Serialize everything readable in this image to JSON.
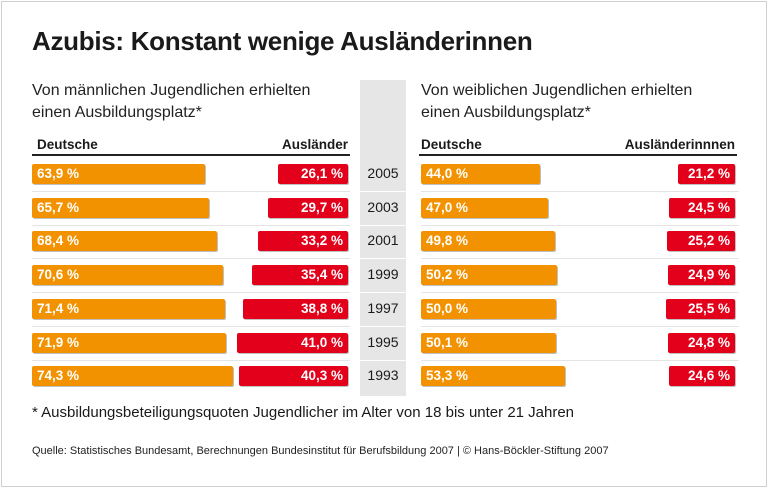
{
  "title": "Azubis: Konstant wenige Ausländerinnen",
  "footnote": "* Ausbildungsbeteiligungsquoten Jugendlicher im Alter von 18 bis unter 21 Jahren",
  "source": "Quelle: Statistisches Bundesamt, Berechnungen Bundesinstitut für Berufsbildung 2007 | © Hans-Böckler-Stiftung 2007",
  "colors": {
    "deutsche": "#f39200",
    "auslaender": "#e2001a",
    "year_column": "#e6e6e6"
  },
  "chart_data": [
    {
      "type": "bar",
      "orientation": "horizontal",
      "subtitle_line1": "Von männlichen Jugendlichen erhielten",
      "subtitle_line2": "einen Ausbildungsplatz*",
      "categories": [
        "2005",
        "2003",
        "2001",
        "1999",
        "1997",
        "1995",
        "1993"
      ],
      "series": [
        {
          "name": "Deutsche",
          "values": [
            63.9,
            65.7,
            68.4,
            70.6,
            71.4,
            71.9,
            74.3
          ],
          "labels": [
            "63,9 %",
            "65,7 %",
            "68,4 %",
            "70,6 %",
            "71,4 %",
            "71,9 %",
            "74,3 %"
          ]
        },
        {
          "name": "Ausländer",
          "values": [
            26.1,
            29.7,
            33.2,
            35.4,
            38.8,
            41.0,
            40.3
          ],
          "labels": [
            "26,1 %",
            "29,7 %",
            "33,2 %",
            "35,4 %",
            "38,8 %",
            "41,0 %",
            "40,3 %"
          ]
        }
      ]
    },
    {
      "type": "bar",
      "orientation": "horizontal",
      "subtitle_line1": "Von weiblichen Jugendlichen erhielten",
      "subtitle_line2": "einen Ausbildungsplatz*",
      "categories": [
        "2005",
        "2003",
        "2001",
        "1999",
        "1997",
        "1995",
        "1993"
      ],
      "series": [
        {
          "name": "Deutsche",
          "values": [
            44.0,
            47.0,
            49.8,
            50.2,
            50.0,
            50.1,
            53.3
          ],
          "labels": [
            "44,0 %",
            "47,0 %",
            "49,8 %",
            "50,2 %",
            "50,0 %",
            "50,1 %",
            "53,3 %"
          ]
        },
        {
          "name": "Ausländerinnnen",
          "values": [
            21.2,
            24.5,
            25.2,
            24.9,
            25.5,
            24.8,
            24.6
          ],
          "labels": [
            "21,2 %",
            "24,5 %",
            "25,2 %",
            "24,9 %",
            "25,5 %",
            "24,8 %",
            "24,6 %"
          ]
        }
      ]
    }
  ]
}
